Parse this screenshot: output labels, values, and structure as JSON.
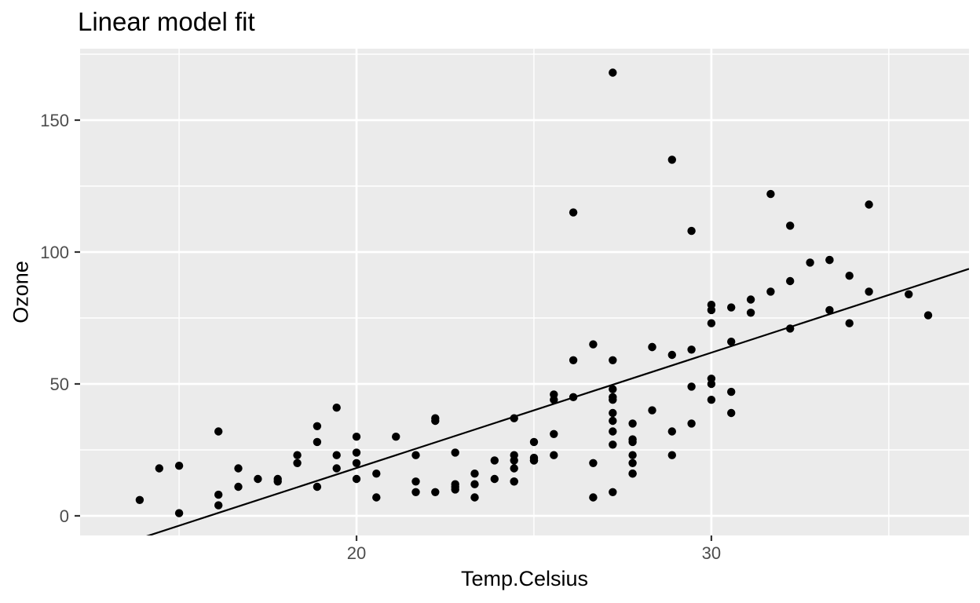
{
  "title": "Linear model fit",
  "style": {
    "panel_bg": "#EBEBEB",
    "grid_color": "#FFFFFF",
    "point_color": "#000000",
    "fit_line_color": "#000000",
    "tick_mark_color": "#333333",
    "axis_text_color": "#4D4D4D",
    "title_color": "#000000"
  },
  "chart_data": {
    "type": "scatter",
    "title": "Linear model fit",
    "xlabel": "Temp.Celsius",
    "ylabel": "Ozone",
    "xlim": [
      12.21,
      37.26
    ],
    "ylim": [
      -7.44,
      177.08
    ],
    "x_ticks": [
      20,
      30
    ],
    "x_minor_ticks": [
      15,
      25,
      35
    ],
    "y_ticks": [
      0,
      50,
      100,
      150
    ],
    "y_minor_ticks": [
      25,
      75,
      125,
      175
    ],
    "grid": true,
    "legend": "none",
    "fit_line": {
      "type": "linear",
      "intercept": -69.32,
      "slope": 4.373
    },
    "points": [
      [
        19.44,
        41
      ],
      [
        22.22,
        36
      ],
      [
        23.33,
        12
      ],
      [
        16.67,
        18
      ],
      [
        18.89,
        28
      ],
      [
        18.33,
        23
      ],
      [
        15,
        19
      ],
      [
        16.11,
        8
      ],
      [
        23.33,
        7
      ],
      [
        20.56,
        16
      ],
      [
        18.89,
        11
      ],
      [
        20,
        14
      ],
      [
        14.44,
        18
      ],
      [
        17.78,
        14
      ],
      [
        18.89,
        34
      ],
      [
        13.89,
        6
      ],
      [
        20,
        30
      ],
      [
        16.67,
        11
      ],
      [
        15,
        1
      ],
      [
        22.78,
        11
      ],
      [
        16.11,
        4
      ],
      [
        16.11,
        32
      ],
      [
        19.44,
        23
      ],
      [
        27.22,
        45
      ],
      [
        26.11,
        115
      ],
      [
        24.44,
        37
      ],
      [
        28.89,
        23
      ],
      [
        27.78,
        29
      ],
      [
        32.22,
        71
      ],
      [
        30.56,
        39
      ],
      [
        27.78,
        23
      ],
      [
        25,
        21
      ],
      [
        22.22,
        37
      ],
      [
        18.33,
        20
      ],
      [
        22.78,
        12
      ],
      [
        24.44,
        13
      ],
      [
        28.89,
        135
      ],
      [
        29.44,
        49
      ],
      [
        27.22,
        32
      ],
      [
        28.33,
        64
      ],
      [
        28.33,
        40
      ],
      [
        31.11,
        77
      ],
      [
        33.33,
        97
      ],
      [
        33.33,
        97
      ],
      [
        31.67,
        85
      ],
      [
        22.78,
        10
      ],
      [
        27.22,
        27
      ],
      [
        26.67,
        7
      ],
      [
        27.22,
        48
      ],
      [
        27.78,
        35
      ],
      [
        28.89,
        61
      ],
      [
        30.56,
        79
      ],
      [
        29.44,
        63
      ],
      [
        23.33,
        16
      ],
      [
        30,
        80
      ],
      [
        29.44,
        108
      ],
      [
        27.78,
        20
      ],
      [
        30,
        52
      ],
      [
        31.11,
        82
      ],
      [
        30,
        50
      ],
      [
        28.33,
        64
      ],
      [
        27.22,
        59
      ],
      [
        27.22,
        39
      ],
      [
        27.22,
        9
      ],
      [
        27.78,
        16
      ],
      [
        30,
        78
      ],
      [
        29.44,
        35
      ],
      [
        30.56,
        66
      ],
      [
        31.67,
        122
      ],
      [
        32.22,
        89
      ],
      [
        32.22,
        110
      ],
      [
        30,
        44
      ],
      [
        27.78,
        28
      ],
      [
        26.67,
        65
      ],
      [
        25,
        22
      ],
      [
        26.11,
        59
      ],
      [
        24.44,
        23
      ],
      [
        25.56,
        31
      ],
      [
        25.56,
        44
      ],
      [
        25,
        21
      ],
      [
        22.22,
        9
      ],
      [
        26.11,
        45
      ],
      [
        27.22,
        168
      ],
      [
        30,
        73
      ],
      [
        36.11,
        76
      ],
      [
        34.44,
        118
      ],
      [
        35.56,
        84
      ],
      [
        34.44,
        85
      ],
      [
        32.78,
        96
      ],
      [
        33.33,
        78
      ],
      [
        33.89,
        73
      ],
      [
        33.89,
        91
      ],
      [
        30.56,
        47
      ],
      [
        28.89,
        32
      ],
      [
        26.67,
        20
      ],
      [
        25.56,
        23
      ],
      [
        23.89,
        21
      ],
      [
        22.78,
        24
      ],
      [
        27.22,
        44
      ],
      [
        24.44,
        21
      ],
      [
        25,
        28
      ],
      [
        21.67,
        9
      ],
      [
        21.67,
        13
      ],
      [
        25.56,
        46
      ],
      [
        19.44,
        18
      ],
      [
        24.44,
        13
      ],
      [
        20,
        24
      ],
      [
        27.78,
        16
      ],
      [
        17.78,
        13
      ],
      [
        21.67,
        23
      ],
      [
        27.22,
        36
      ],
      [
        20.56,
        7
      ],
      [
        17.22,
        14
      ],
      [
        21.11,
        30
      ],
      [
        23.89,
        14
      ],
      [
        24.44,
        18
      ],
      [
        20,
        20
      ]
    ]
  }
}
